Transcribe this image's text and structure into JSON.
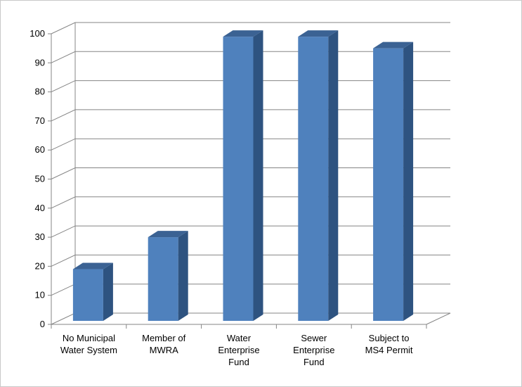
{
  "chart_data": {
    "type": "bar",
    "title": "",
    "xlabel": "",
    "ylabel": "",
    "categories": [
      [
        "No Municipal",
        "Water System"
      ],
      [
        "Member of",
        "MWRA"
      ],
      [
        "Water",
        "Enterprise",
        "Fund"
      ],
      [
        "Sewer",
        "Enterprise",
        "Fund"
      ],
      [
        "Subject to",
        "MS4 Permit"
      ]
    ],
    "values": [
      19,
      30,
      99,
      99,
      95
    ],
    "ylim": [
      0,
      100
    ],
    "yticks": [
      "0",
      "10",
      "20",
      "30",
      "40",
      "50",
      "60",
      "70",
      "80",
      "90",
      "100"
    ],
    "grid": true,
    "legend": "none",
    "style": "3d-column",
    "colors": {
      "front": "#4f81bd",
      "side": "#2e5380",
      "top": "#3b6293",
      "grid": "#858585",
      "axis": "#858585"
    }
  }
}
